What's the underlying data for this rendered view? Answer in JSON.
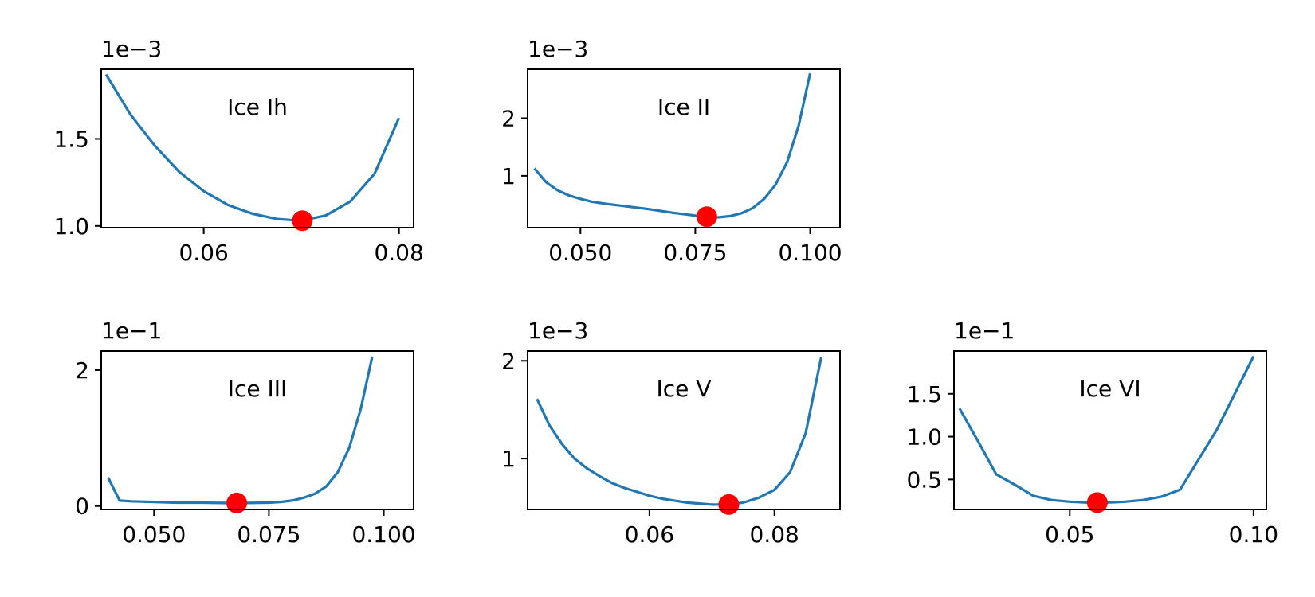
{
  "style": {
    "line_color": "#1f77b4",
    "marker_color": "#ff0000",
    "axis_color": "#000000",
    "background": "#ffffff"
  },
  "chart_data": [
    {
      "type": "line",
      "annotation": "Ice Ih",
      "offset_label": "1e−3",
      "xlim": [
        0.0495,
        0.0815
      ],
      "ylim": [
        0.99,
        1.9
      ],
      "xticks": [
        0.06,
        0.08
      ],
      "xtick_labels": [
        "0.06",
        "0.08"
      ],
      "yticks": [
        1.0,
        1.5
      ],
      "ytick_labels": [
        "1.0",
        "1.5"
      ],
      "x": [
        0.05,
        0.0525,
        0.055,
        0.0575,
        0.06,
        0.0625,
        0.065,
        0.0675,
        0.07,
        0.0725,
        0.075,
        0.0775,
        0.08
      ],
      "y": [
        1.87,
        1.64,
        1.46,
        1.31,
        1.2,
        1.12,
        1.07,
        1.04,
        1.03,
        1.06,
        1.14,
        1.3,
        1.62
      ],
      "minimum": {
        "x": 0.0701,
        "y": 1.03
      }
    },
    {
      "type": "line",
      "annotation": "Ice II",
      "offset_label": "1e−3",
      "xlim": [
        0.0385,
        0.1065
      ],
      "ylim": [
        0.1,
        2.85
      ],
      "xticks": [
        0.05,
        0.075,
        0.1
      ],
      "xtick_labels": [
        "0.050",
        "0.075",
        "0.100"
      ],
      "yticks": [
        1,
        2
      ],
      "ytick_labels": [
        "1",
        "2"
      ],
      "x": [
        0.04,
        0.0425,
        0.045,
        0.0475,
        0.05,
        0.0525,
        0.055,
        0.06,
        0.065,
        0.07,
        0.075,
        0.0775,
        0.08,
        0.0825,
        0.085,
        0.0875,
        0.09,
        0.0925,
        0.095,
        0.0975,
        0.1
      ],
      "y": [
        1.13,
        0.89,
        0.75,
        0.66,
        0.6,
        0.55,
        0.52,
        0.47,
        0.42,
        0.36,
        0.31,
        0.29,
        0.28,
        0.3,
        0.35,
        0.44,
        0.6,
        0.85,
        1.24,
        1.87,
        2.78
      ],
      "minimum": {
        "x": 0.0775,
        "y": 0.29
      }
    },
    {
      "type": "line",
      "annotation": "Ice III",
      "offset_label": "1e−1",
      "xlim": [
        0.0385,
        0.1065
      ],
      "ylim": [
        -0.05,
        2.28
      ],
      "xticks": [
        0.05,
        0.075,
        0.1
      ],
      "xtick_labels": [
        "0.050",
        "0.075",
        "0.100"
      ],
      "yticks": [
        0,
        2
      ],
      "ytick_labels": [
        "0",
        "2"
      ],
      "x": [
        0.04,
        0.0425,
        0.045,
        0.05,
        0.055,
        0.06,
        0.065,
        0.07,
        0.075,
        0.0775,
        0.08,
        0.0825,
        0.085,
        0.0875,
        0.09,
        0.0925,
        0.095,
        0.0975
      ],
      "y": [
        0.42,
        0.08,
        0.07,
        0.06,
        0.05,
        0.05,
        0.045,
        0.045,
        0.05,
        0.06,
        0.08,
        0.12,
        0.18,
        0.29,
        0.5,
        0.86,
        1.43,
        2.2
      ],
      "minimum": {
        "x": 0.068,
        "y": 0.045
      }
    },
    {
      "type": "line",
      "annotation": "Ice V",
      "offset_label": "1e−3",
      "xlim": [
        0.0405,
        0.0905
      ],
      "ylim": [
        0.48,
        2.1
      ],
      "xticks": [
        0.06,
        0.08
      ],
      "xtick_labels": [
        "0.06",
        "0.08"
      ],
      "yticks": [
        1,
        2
      ],
      "ytick_labels": [
        "1",
        "2"
      ],
      "x": [
        0.042,
        0.044,
        0.046,
        0.048,
        0.05,
        0.052,
        0.054,
        0.056,
        0.058,
        0.06,
        0.062,
        0.064,
        0.066,
        0.068,
        0.07,
        0.072,
        0.0725,
        0.075,
        0.0775,
        0.08,
        0.0825,
        0.085,
        0.0875
      ],
      "y": [
        1.61,
        1.34,
        1.15,
        1.0,
        0.9,
        0.82,
        0.75,
        0.7,
        0.66,
        0.62,
        0.59,
        0.57,
        0.55,
        0.54,
        0.53,
        0.53,
        0.53,
        0.55,
        0.6,
        0.68,
        0.86,
        1.26,
        2.04
      ],
      "minimum": {
        "x": 0.0727,
        "y": 0.53
      }
    },
    {
      "type": "line",
      "annotation": "Ice VI",
      "offset_label": "1e−1",
      "xlim": [
        0.0185,
        0.1035
      ],
      "ylim": [
        0.15,
        2.0
      ],
      "xticks": [
        0.05,
        0.1
      ],
      "xtick_labels": [
        "0.05",
        "0.10"
      ],
      "yticks": [
        0.5,
        1.0,
        1.5
      ],
      "ytick_labels": [
        "0.5",
        "1.0",
        "1.5"
      ],
      "x": [
        0.02,
        0.025,
        0.03,
        0.035,
        0.04,
        0.045,
        0.05,
        0.055,
        0.06,
        0.065,
        0.07,
        0.075,
        0.08,
        0.09,
        0.1
      ],
      "y": [
        1.33,
        0.95,
        0.56,
        0.44,
        0.31,
        0.26,
        0.24,
        0.23,
        0.23,
        0.24,
        0.26,
        0.3,
        0.38,
        1.08,
        1.94
      ],
      "minimum": {
        "x": 0.0575,
        "y": 0.23
      }
    }
  ]
}
